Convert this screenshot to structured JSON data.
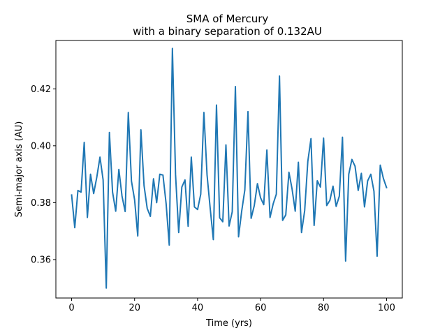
{
  "chart_data": {
    "type": "line",
    "title": "SMA of Mercury",
    "subtitle": "with a binary separation of 0.132AU",
    "xlabel": "Time (yrs)",
    "ylabel": "Semi-major axis (AU)",
    "xlim": [
      -5,
      105
    ],
    "ylim": [
      0.3465,
      0.437
    ],
    "xticks": [
      0,
      20,
      40,
      60,
      80,
      100
    ],
    "xtick_labels": [
      "0",
      "20",
      "40",
      "60",
      "80",
      "100"
    ],
    "yticks": [
      0.36,
      0.38,
      0.4,
      0.42
    ],
    "ytick_labels": [
      "0.36",
      "0.38",
      "0.40",
      "0.42"
    ],
    "grid": false,
    "legend": "none",
    "series": [
      {
        "color": "#1f77b4",
        "x": [
          0,
          1,
          2,
          3,
          4,
          5,
          6,
          7,
          8,
          9,
          10,
          11,
          12,
          13,
          14,
          15,
          16,
          17,
          18,
          19,
          20,
          21,
          22,
          23,
          24,
          25,
          26,
          27,
          28,
          29,
          30,
          31,
          32,
          33,
          34,
          35,
          36,
          37,
          38,
          39,
          40,
          41,
          42,
          43,
          44,
          45,
          46,
          47,
          48,
          49,
          50,
          51,
          52,
          53,
          54,
          55,
          56,
          57,
          58,
          59,
          60,
          61,
          62,
          63,
          64,
          65,
          66,
          67,
          68,
          69,
          70,
          71,
          72,
          73,
          74,
          75,
          76,
          77,
          78,
          79,
          80,
          81,
          82,
          83,
          84,
          85,
          86,
          87,
          88,
          89,
          90,
          91,
          92,
          93,
          94,
          95,
          96,
          97,
          98,
          99,
          100
        ],
        "values": [
          0.3827,
          0.3712,
          0.3843,
          0.3837,
          0.4012,
          0.3748,
          0.39,
          0.3832,
          0.389,
          0.396,
          0.388,
          0.35,
          0.4047,
          0.3837,
          0.377,
          0.3917,
          0.3823,
          0.3769,
          0.4117,
          0.3876,
          0.381,
          0.3683,
          0.4056,
          0.386,
          0.378,
          0.3752,
          0.3884,
          0.38,
          0.39,
          0.3897,
          0.3797,
          0.3651,
          0.4342,
          0.3898,
          0.3695,
          0.3855,
          0.388,
          0.3717,
          0.396,
          0.3785,
          0.3776,
          0.383,
          0.4117,
          0.3898,
          0.378,
          0.367,
          0.4143,
          0.3747,
          0.3733,
          0.4003,
          0.3718,
          0.3768,
          0.4208,
          0.368,
          0.377,
          0.3845,
          0.412,
          0.3745,
          0.379,
          0.3867,
          0.3817,
          0.3793,
          0.3985,
          0.3748,
          0.3796,
          0.383,
          0.4245,
          0.3738,
          0.3757,
          0.3907,
          0.3848,
          0.377,
          0.3942,
          0.3695,
          0.3772,
          0.3945,
          0.4025,
          0.372,
          0.3877,
          0.3855,
          0.4027,
          0.379,
          0.3808,
          0.3858,
          0.3787,
          0.3823,
          0.403,
          0.3595,
          0.39,
          0.3952,
          0.3928,
          0.3843,
          0.3903,
          0.3785,
          0.3877,
          0.39,
          0.384,
          0.3612,
          0.3932,
          0.3885,
          0.3853
        ]
      }
    ]
  }
}
